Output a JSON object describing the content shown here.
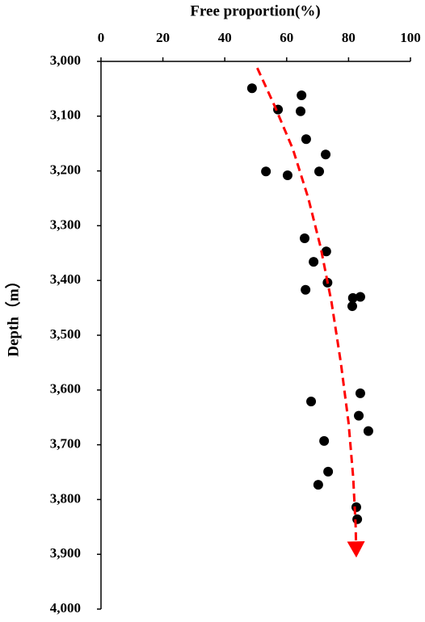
{
  "chart_data": {
    "type": "scatter",
    "xlabel": "Free proportion(%)",
    "ylabel": "Depth（m）",
    "x": [
      48.8,
      64.8,
      57.2,
      64.5,
      66.3,
      72.6,
      53.3,
      60.3,
      70.5,
      65.8,
      72.8,
      68.7,
      73.2,
      66.1,
      83.8,
      81.4,
      81.2,
      83.8,
      67.9,
      83.3,
      86.4,
      72.1,
      73.4,
      70.2,
      82.5,
      82.8
    ],
    "values": [
      3049,
      3062,
      3088,
      3091,
      3142,
      3170,
      3201,
      3208,
      3201,
      3323,
      3347,
      3366,
      3404,
      3417,
      3430,
      3432,
      3447,
      3606,
      3621,
      3647,
      3675,
      3693,
      3749,
      3773,
      3814,
      3836
    ],
    "color": "#000000",
    "trend": {
      "x": [
        50.5,
        56,
        62,
        67,
        71,
        74.5,
        77.5,
        80,
        81.5,
        82.3,
        82.5
      ],
      "values": [
        3012,
        3080,
        3160,
        3250,
        3340,
        3440,
        3550,
        3660,
        3760,
        3850,
        3906
      ],
      "color": "#ff0000",
      "dashed": true
    },
    "xlim": [
      0,
      100
    ],
    "xticks": [
      0,
      20,
      40,
      60,
      80,
      100
    ],
    "ylim": [
      3000,
      4000
    ],
    "y_inverted": true,
    "yticks": [
      {
        "value": 3000,
        "label": "3,000"
      },
      {
        "value": 3100,
        "label": "3,100"
      },
      {
        "value": 3200,
        "label": "3,200"
      },
      {
        "value": 3300,
        "label": "3,300"
      },
      {
        "value": 3400,
        "label": "3,400"
      },
      {
        "value": 3500,
        "label": "3,500"
      },
      {
        "value": 3600,
        "label": "3,600"
      },
      {
        "value": 3700,
        "label": "3,700"
      },
      {
        "value": 3800,
        "label": "3,800"
      },
      {
        "value": 3900,
        "label": "3,900"
      },
      {
        "value": 4000,
        "label": "4,000"
      }
    ]
  }
}
